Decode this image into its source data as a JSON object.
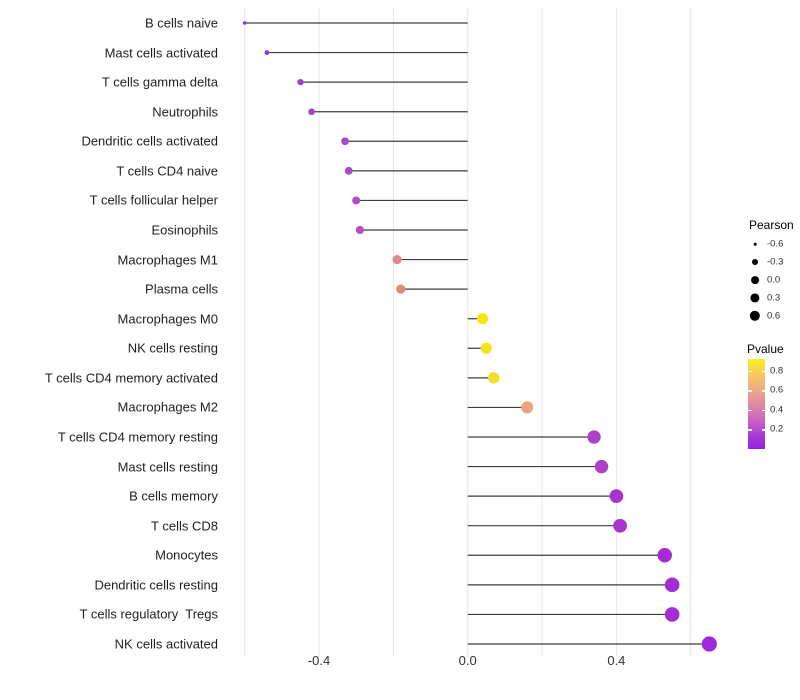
{
  "chart_data": {
    "type": "lollipop",
    "orientation": "horizontal",
    "title": "",
    "xlabel": "",
    "ylabel": "",
    "grid": "vertical-only",
    "x_axis": {
      "tick_labels": [
        "-0.4",
        "0.0",
        "0.4"
      ],
      "tick_values": [
        -0.4,
        0.0,
        0.4
      ],
      "gridline_values": [
        -0.6,
        -0.4,
        -0.2,
        0.0,
        0.2,
        0.4,
        0.6
      ],
      "range": [
        -0.65,
        0.73
      ]
    },
    "rows": [
      {
        "label": "B cells naive",
        "pearson": -0.6,
        "pvalue": 0.02,
        "color": "#8b2fd0"
      },
      {
        "label": "Mast cells activated",
        "pearson": -0.54,
        "pvalue": 0.03,
        "color": "#9638d2"
      },
      {
        "label": "T cells gamma delta",
        "pearson": -0.45,
        "pvalue": 0.06,
        "color": "#9d3ed0"
      },
      {
        "label": "Neutrophils",
        "pearson": -0.42,
        "pvalue": 0.07,
        "color": "#a343cd"
      },
      {
        "label": "Dendritic cells activated",
        "pearson": -0.33,
        "pvalue": 0.1,
        "color": "#aa4cc8"
      },
      {
        "label": "T cells CD4 naive",
        "pearson": -0.32,
        "pvalue": 0.1,
        "color": "#aa4cc8"
      },
      {
        "label": "T cells follicular helper",
        "pearson": -0.3,
        "pvalue": 0.13,
        "color": "#b150c4"
      },
      {
        "label": "Eosinophils",
        "pearson": -0.29,
        "pvalue": 0.14,
        "color": "#b551c0"
      },
      {
        "label": "Macrophages M1",
        "pearson": -0.19,
        "pvalue": 0.48,
        "color": "#db8a89"
      },
      {
        "label": "Plasma cells",
        "pearson": -0.18,
        "pvalue": 0.48,
        "color": "#db8a86"
      },
      {
        "label": "Macrophages M0",
        "pearson": 0.04,
        "pvalue": 0.85,
        "color": "#f8e41c"
      },
      {
        "label": "NK cells resting",
        "pearson": 0.05,
        "pvalue": 0.85,
        "color": "#f8e41c"
      },
      {
        "label": "T cells CD4 memory activated",
        "pearson": 0.07,
        "pvalue": 0.8,
        "color": "#f3dd2b"
      },
      {
        "label": "Macrophages M2",
        "pearson": 0.16,
        "pvalue": 0.58,
        "color": "#eca47e"
      },
      {
        "label": "T cells CD4 memory resting",
        "pearson": 0.34,
        "pvalue": 0.12,
        "color": "#ae41c8"
      },
      {
        "label": "Mast cells resting",
        "pearson": 0.36,
        "pvalue": 0.11,
        "color": "#ad3fc9"
      },
      {
        "label": "B cells memory",
        "pearson": 0.4,
        "pvalue": 0.09,
        "color": "#a935cd"
      },
      {
        "label": "T cells CD8",
        "pearson": 0.41,
        "pvalue": 0.09,
        "color": "#a935cd"
      },
      {
        "label": "Monocytes",
        "pearson": 0.53,
        "pvalue": 0.06,
        "color": "#a52bd3"
      },
      {
        "label": "Dendritic cells resting",
        "pearson": 0.55,
        "pvalue": 0.06,
        "color": "#a52bd3"
      },
      {
        "label": "T cells regulatory  Tregs",
        "pearson": 0.55,
        "pvalue": 0.06,
        "color": "#a52bd3"
      },
      {
        "label": "NK cells activated",
        "pearson": 0.65,
        "pvalue": 0.04,
        "color": "#a028d8"
      }
    ],
    "legends": {
      "pearson": {
        "title": "Pearson",
        "items": [
          {
            "label": "-0.6",
            "radius": 1.3
          },
          {
            "label": "-0.3",
            "radius": 3.0
          },
          {
            "label": "0.0",
            "radius": 3.9
          },
          {
            "label": "0.3",
            "radius": 4.6
          },
          {
            "label": "0.6",
            "radius": 5.2
          }
        ]
      },
      "pvalue": {
        "title": "Pvalue",
        "bar_domain": [
          0.0,
          0.92
        ],
        "ticks": [
          {
            "label": "0.8",
            "value": 0.8
          },
          {
            "label": "0.6",
            "value": 0.6
          },
          {
            "label": "0.4",
            "value": 0.4
          },
          {
            "label": "0.2",
            "value": 0.2
          }
        ],
        "gradient_stops": [
          {
            "pos": 0.0,
            "color": "#faf11f"
          },
          {
            "pos": 0.18,
            "color": "#f3c964"
          },
          {
            "pos": 0.38,
            "color": "#eba28d"
          },
          {
            "pos": 0.55,
            "color": "#dd80ac"
          },
          {
            "pos": 0.72,
            "color": "#c35ac6"
          },
          {
            "pos": 0.88,
            "color": "#a535d6"
          },
          {
            "pos": 1.0,
            "color": "#9322e2"
          }
        ]
      }
    },
    "colors": {
      "background": "#ffffff",
      "gridline": "#e6e6e6",
      "stem": "#3d3d3d",
      "legend_dot": "#000000"
    }
  }
}
